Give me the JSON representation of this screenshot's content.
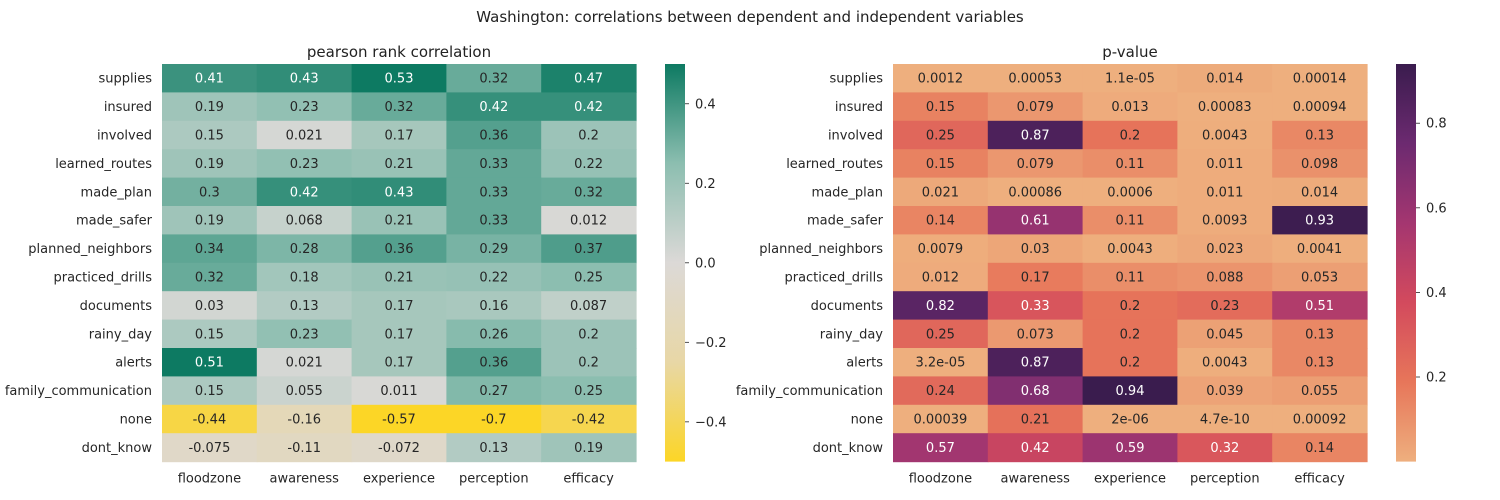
{
  "suptitle": "Washington: correlations between dependent and independent variables",
  "chart_data": [
    {
      "type": "heatmap",
      "title": "pearson rank correlation",
      "rows": [
        "supplies",
        "insured",
        "involved",
        "learned_routes",
        "made_plan",
        "made_safer",
        "planned_neighbors",
        "practiced_drills",
        "documents",
        "rainy_day",
        "alerts",
        "family_communication",
        "none",
        "dont_know"
      ],
      "columns": [
        "floodzone",
        "awareness",
        "experience",
        "perception",
        "efficacy"
      ],
      "values": [
        [
          0.41,
          0.43,
          0.53,
          0.32,
          0.47
        ],
        [
          0.19,
          0.23,
          0.32,
          0.42,
          0.42
        ],
        [
          0.15,
          0.021,
          0.17,
          0.36,
          0.2
        ],
        [
          0.19,
          0.23,
          0.21,
          0.33,
          0.22
        ],
        [
          0.3,
          0.42,
          0.43,
          0.33,
          0.32
        ],
        [
          0.19,
          0.068,
          0.21,
          0.33,
          0.012
        ],
        [
          0.34,
          0.28,
          0.36,
          0.29,
          0.37
        ],
        [
          0.32,
          0.18,
          0.21,
          0.22,
          0.25
        ],
        [
          0.03,
          0.13,
          0.17,
          0.16,
          0.087
        ],
        [
          0.15,
          0.23,
          0.17,
          0.26,
          0.2
        ],
        [
          0.51,
          0.021,
          0.17,
          0.36,
          0.2
        ],
        [
          0.15,
          0.055,
          0.011,
          0.27,
          0.25
        ],
        [
          -0.44,
          -0.16,
          -0.57,
          -0.7,
          -0.42
        ],
        [
          -0.075,
          -0.11,
          -0.072,
          0.13,
          0.19
        ]
      ],
      "labels": [
        [
          "0.41",
          "0.43",
          "0.53",
          "0.32",
          "0.47"
        ],
        [
          "0.19",
          "0.23",
          "0.32",
          "0.42",
          "0.42"
        ],
        [
          "0.15",
          "0.021",
          "0.17",
          "0.36",
          "0.2"
        ],
        [
          "0.19",
          "0.23",
          "0.21",
          "0.33",
          "0.22"
        ],
        [
          "0.3",
          "0.42",
          "0.43",
          "0.33",
          "0.32"
        ],
        [
          "0.19",
          "0.068",
          "0.21",
          "0.33",
          "0.012"
        ],
        [
          "0.34",
          "0.28",
          "0.36",
          "0.29",
          "0.37"
        ],
        [
          "0.32",
          "0.18",
          "0.21",
          "0.22",
          "0.25"
        ],
        [
          "0.03",
          "0.13",
          "0.17",
          "0.16",
          "0.087"
        ],
        [
          "0.15",
          "0.23",
          "0.17",
          "0.26",
          "0.2"
        ],
        [
          "0.51",
          "0.021",
          "0.17",
          "0.36",
          "0.2"
        ],
        [
          "0.15",
          "0.055",
          "0.011",
          "0.27",
          "0.25"
        ],
        [
          "-0.44",
          "-0.16",
          "-0.57",
          "-0.7",
          "-0.42"
        ],
        [
          "-0.075",
          "-0.11",
          "-0.072",
          "0.13",
          "0.19"
        ]
      ],
      "colorbar": {
        "vmin": -0.5,
        "vmax": 0.5,
        "ticks": [
          -0.4,
          -0.2,
          0.0,
          0.2,
          0.4
        ],
        "tick_labels": [
          "−0.4",
          "−0.2",
          "0.0",
          "0.2",
          "0.4"
        ],
        "colormap": [
          "#fcd626",
          "#e8d7a6",
          "#dcd9d7",
          "#8cbeb0",
          "#0d7a62"
        ]
      }
    },
    {
      "type": "heatmap",
      "title": "p-value",
      "rows": [
        "supplies",
        "insured",
        "involved",
        "learned_routes",
        "made_plan",
        "made_safer",
        "planned_neighbors",
        "practiced_drills",
        "documents",
        "rainy_day",
        "alerts",
        "family_communication",
        "none",
        "dont_know"
      ],
      "columns": [
        "floodzone",
        "awareness",
        "experience",
        "perception",
        "efficacy"
      ],
      "values": [
        [
          0.0012,
          0.00053,
          1.1e-05,
          0.014,
          0.00014
        ],
        [
          0.15,
          0.079,
          0.013,
          0.00083,
          0.00094
        ],
        [
          0.25,
          0.87,
          0.2,
          0.0043,
          0.13
        ],
        [
          0.15,
          0.079,
          0.11,
          0.011,
          0.098
        ],
        [
          0.021,
          0.00086,
          0.0006,
          0.011,
          0.014
        ],
        [
          0.14,
          0.61,
          0.11,
          0.0093,
          0.93
        ],
        [
          0.0079,
          0.03,
          0.0043,
          0.023,
          0.0041
        ],
        [
          0.012,
          0.17,
          0.11,
          0.088,
          0.053
        ],
        [
          0.82,
          0.33,
          0.2,
          0.23,
          0.51
        ],
        [
          0.25,
          0.073,
          0.2,
          0.045,
          0.13
        ],
        [
          3.2e-05,
          0.87,
          0.2,
          0.0043,
          0.13
        ],
        [
          0.24,
          0.68,
          0.94,
          0.039,
          0.055
        ],
        [
          0.00039,
          0.21,
          2e-06,
          4.7e-10,
          0.00092
        ],
        [
          0.57,
          0.42,
          0.59,
          0.32,
          0.14
        ]
      ],
      "labels": [
        [
          "0.0012",
          "0.00053",
          "1.1e-05",
          "0.014",
          "0.00014"
        ],
        [
          "0.15",
          "0.079",
          "0.013",
          "0.00083",
          "0.00094"
        ],
        [
          "0.25",
          "0.87",
          "0.2",
          "0.0043",
          "0.13"
        ],
        [
          "0.15",
          "0.079",
          "0.11",
          "0.011",
          "0.098"
        ],
        [
          "0.021",
          "0.00086",
          "0.0006",
          "0.011",
          "0.014"
        ],
        [
          "0.14",
          "0.61",
          "0.11",
          "0.0093",
          "0.93"
        ],
        [
          "0.0079",
          "0.03",
          "0.0043",
          "0.023",
          "0.0041"
        ],
        [
          "0.012",
          "0.17",
          "0.11",
          "0.088",
          "0.053"
        ],
        [
          "0.82",
          "0.33",
          "0.2",
          "0.23",
          "0.51"
        ],
        [
          "0.25",
          "0.073",
          "0.2",
          "0.045",
          "0.13"
        ],
        [
          "3.2e-05",
          "0.87",
          "0.2",
          "0.0043",
          "0.13"
        ],
        [
          "0.24",
          "0.68",
          "0.94",
          "0.039",
          "0.055"
        ],
        [
          "0.00039",
          "0.21",
          "2e-06",
          "4.7e-10",
          "0.00092"
        ],
        [
          "0.57",
          "0.42",
          "0.59",
          "0.32",
          "0.14"
        ]
      ],
      "colorbar": {
        "vmin": 0.0,
        "vmax": 0.94,
        "ticks": [
          0.2,
          0.4,
          0.6,
          0.8
        ],
        "tick_labels": [
          "0.2",
          "0.4",
          "0.6",
          "0.8"
        ],
        "colormap": [
          "#eeaf7e",
          "#e7765a",
          "#d34a5d",
          "#a43670",
          "#6c2a70",
          "#3a1c4e"
        ]
      }
    }
  ]
}
